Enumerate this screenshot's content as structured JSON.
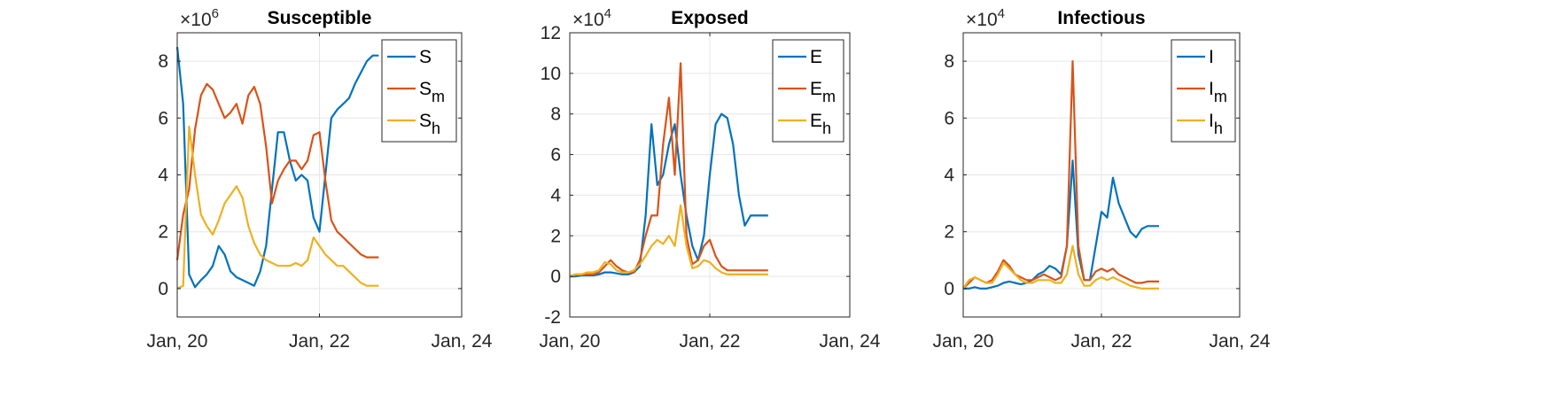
{
  "chart_data": [
    {
      "type": "line",
      "title": "Susceptible",
      "exponent_label": "×10",
      "exponent": "6",
      "scale": 1000000,
      "xlim": [
        "Jan, 20",
        "Jan, 24"
      ],
      "xticks": [
        "Jan, 20",
        "Jan, 22",
        "Jan, 24"
      ],
      "ylim": [
        -1,
        9
      ],
      "yticks": [
        "0",
        "2",
        "4",
        "6",
        "8"
      ],
      "grid": true,
      "legend_position": "top-right",
      "x": [
        "Jan, 20",
        "Feb, 20",
        "Mar, 20",
        "Apr, 20",
        "May, 20",
        "Jun, 20",
        "Jul, 20",
        "Aug, 20",
        "Sep, 20",
        "Oct, 20",
        "Nov, 20",
        "Dec, 20",
        "Jan, 21",
        "Feb, 21",
        "Mar, 21",
        "Apr, 21",
        "May, 21",
        "Jun, 21",
        "Jul, 21",
        "Aug, 21",
        "Sep, 21",
        "Oct, 21",
        "Nov, 21",
        "Dec, 21",
        "Jan, 22",
        "Feb, 22",
        "Mar, 22",
        "Apr, 22",
        "May, 22",
        "Jun, 22",
        "Jul, 22",
        "Aug, 22",
        "Sep, 22",
        "Oct, 22",
        "Nov, 22"
      ],
      "series": [
        {
          "name": "S",
          "base": "S",
          "sub": "",
          "color": "#0072BD",
          "values": [
            8.5,
            6.5,
            0.5,
            0.05,
            0.3,
            0.5,
            0.8,
            1.5,
            1.2,
            0.6,
            0.4,
            0.3,
            0.2,
            0.1,
            0.6,
            1.5,
            3.5,
            5.5,
            5.5,
            4.5,
            3.8,
            4.0,
            3.8,
            2.5,
            2.0,
            4.0,
            6.0,
            6.3,
            6.5,
            6.7,
            7.2,
            7.6,
            8.0,
            8.2,
            8.2
          ]
        },
        {
          "name": "Sm",
          "base": "S",
          "sub": "m",
          "color": "#D95319",
          "values": [
            1.0,
            2.6,
            3.5,
            5.6,
            6.8,
            7.2,
            7.0,
            6.5,
            6.0,
            6.2,
            6.5,
            5.8,
            6.8,
            7.1,
            6.5,
            5.0,
            3.0,
            3.8,
            4.2,
            4.5,
            4.5,
            4.2,
            4.5,
            5.4,
            5.5,
            3.8,
            2.4,
            2.0,
            1.8,
            1.6,
            1.4,
            1.2,
            1.1,
            1.1,
            1.1
          ]
        },
        {
          "name": "Sh",
          "base": "S",
          "sub": "h",
          "color": "#EDB120",
          "values": [
            0.0,
            0.1,
            5.7,
            4.0,
            2.6,
            2.2,
            1.9,
            2.4,
            3.0,
            3.3,
            3.6,
            3.2,
            2.2,
            1.6,
            1.2,
            1.0,
            0.9,
            0.8,
            0.8,
            0.8,
            0.9,
            0.8,
            1.0,
            1.8,
            1.5,
            1.2,
            1.0,
            0.8,
            0.8,
            0.6,
            0.4,
            0.2,
            0.1,
            0.1,
            0.1
          ]
        }
      ]
    },
    {
      "type": "line",
      "title": "Exposed",
      "exponent_label": "×10",
      "exponent": "4",
      "scale": 10000,
      "xlim": [
        "Jan, 20",
        "Jan, 24"
      ],
      "xticks": [
        "Jan, 20",
        "Jan, 22",
        "Jan, 24"
      ],
      "ylim": [
        -2,
        12
      ],
      "yticks": [
        "-2",
        "0",
        "2",
        "4",
        "6",
        "8",
        "10",
        "12"
      ],
      "grid": true,
      "legend_position": "top-right",
      "x": [
        "Jan, 20",
        "Feb, 20",
        "Mar, 20",
        "Apr, 20",
        "May, 20",
        "Jun, 20",
        "Jul, 20",
        "Aug, 20",
        "Sep, 20",
        "Oct, 20",
        "Nov, 20",
        "Dec, 20",
        "Jan, 21",
        "Feb, 21",
        "Mar, 21",
        "Apr, 21",
        "May, 21",
        "Jun, 21",
        "Jul, 21",
        "Aug, 21",
        "Sep, 21",
        "Oct, 21",
        "Nov, 21",
        "Dec, 21",
        "Jan, 22",
        "Feb, 22",
        "Mar, 22",
        "Apr, 22",
        "May, 22",
        "Jun, 22",
        "Jul, 22",
        "Aug, 22",
        "Sep, 22",
        "Oct, 22",
        "Nov, 22"
      ],
      "series": [
        {
          "name": "E",
          "base": "E",
          "sub": "",
          "color": "#0072BD",
          "values": [
            0.0,
            0.0,
            0.05,
            0.05,
            0.05,
            0.1,
            0.2,
            0.2,
            0.15,
            0.1,
            0.1,
            0.2,
            0.5,
            3.0,
            7.5,
            4.5,
            5.0,
            6.5,
            7.5,
            5.0,
            3.0,
            1.5,
            0.8,
            2.0,
            5.0,
            7.5,
            8.0,
            7.8,
            6.5,
            4.0,
            2.5,
            3.0,
            3.0,
            3.0,
            3.0
          ]
        },
        {
          "name": "Em",
          "base": "E",
          "sub": "m",
          "color": "#D95319",
          "values": [
            0.0,
            0.1,
            0.1,
            0.1,
            0.1,
            0.2,
            0.5,
            0.8,
            0.5,
            0.3,
            0.2,
            0.2,
            0.8,
            2.0,
            3.0,
            3.0,
            6.5,
            8.8,
            5.0,
            10.5,
            2.0,
            0.6,
            0.8,
            1.5,
            1.8,
            1.0,
            0.5,
            0.3,
            0.3,
            0.3,
            0.3,
            0.3,
            0.3,
            0.3,
            0.3
          ]
        },
        {
          "name": "Eh",
          "base": "E",
          "sub": "h",
          "color": "#EDB120",
          "values": [
            0.0,
            0.1,
            0.1,
            0.2,
            0.2,
            0.3,
            0.7,
            0.6,
            0.3,
            0.2,
            0.2,
            0.3,
            0.6,
            1.0,
            1.5,
            1.8,
            1.6,
            2.0,
            1.5,
            3.5,
            1.5,
            0.4,
            0.5,
            0.8,
            0.7,
            0.4,
            0.2,
            0.1,
            0.1,
            0.1,
            0.1,
            0.1,
            0.1,
            0.1,
            0.1
          ]
        }
      ]
    },
    {
      "type": "line",
      "title": "Infectious",
      "exponent_label": "×10",
      "exponent": "4",
      "scale": 10000,
      "xlim": [
        "Jan, 20",
        "Jan, 24"
      ],
      "xticks": [
        "Jan, 20",
        "Jan, 22",
        "Jan, 24"
      ],
      "ylim": [
        -1,
        9
      ],
      "yticks": [
        "0",
        "2",
        "4",
        "6",
        "8"
      ],
      "grid": true,
      "legend_position": "top-right",
      "x": [
        "Jan, 20",
        "Feb, 20",
        "Mar, 20",
        "Apr, 20",
        "May, 20",
        "Jun, 20",
        "Jul, 20",
        "Aug, 20",
        "Sep, 20",
        "Oct, 20",
        "Nov, 20",
        "Dec, 20",
        "Jan, 21",
        "Feb, 21",
        "Mar, 21",
        "Apr, 21",
        "May, 21",
        "Jun, 21",
        "Jul, 21",
        "Aug, 21",
        "Sep, 21",
        "Oct, 21",
        "Nov, 21",
        "Dec, 21",
        "Jan, 22",
        "Feb, 22",
        "Mar, 22",
        "Apr, 22",
        "May, 22",
        "Jun, 22",
        "Jul, 22",
        "Aug, 22",
        "Sep, 22",
        "Oct, 22",
        "Nov, 22"
      ],
      "series": [
        {
          "name": "I",
          "base": "I",
          "sub": "",
          "color": "#0072BD",
          "values": [
            0.0,
            0.0,
            0.05,
            0.0,
            0.0,
            0.05,
            0.1,
            0.2,
            0.25,
            0.2,
            0.15,
            0.2,
            0.3,
            0.5,
            0.6,
            0.8,
            0.7,
            0.5,
            1.5,
            4.5,
            1.2,
            0.3,
            0.3,
            1.5,
            2.7,
            2.5,
            3.9,
            3.0,
            2.5,
            2.0,
            1.8,
            2.1,
            2.2,
            2.2,
            2.2
          ]
        },
        {
          "name": "Im",
          "base": "I",
          "sub": "m",
          "color": "#D95319",
          "values": [
            0.0,
            0.2,
            0.4,
            0.3,
            0.2,
            0.3,
            0.6,
            1.0,
            0.8,
            0.5,
            0.4,
            0.3,
            0.3,
            0.4,
            0.5,
            0.4,
            0.3,
            0.4,
            1.5,
            8.0,
            1.5,
            0.3,
            0.3,
            0.6,
            0.7,
            0.6,
            0.7,
            0.5,
            0.4,
            0.3,
            0.2,
            0.2,
            0.25,
            0.25,
            0.25
          ]
        },
        {
          "name": "Ih",
          "base": "I",
          "sub": "h",
          "color": "#EDB120",
          "values": [
            0.0,
            0.3,
            0.4,
            0.3,
            0.2,
            0.2,
            0.5,
            0.9,
            0.7,
            0.5,
            0.3,
            0.2,
            0.2,
            0.3,
            0.3,
            0.3,
            0.2,
            0.2,
            0.5,
            1.5,
            0.5,
            0.1,
            0.1,
            0.3,
            0.4,
            0.3,
            0.4,
            0.3,
            0.2,
            0.1,
            0.05,
            0.0,
            0.0,
            0.0,
            0.0
          ]
        }
      ]
    }
  ]
}
